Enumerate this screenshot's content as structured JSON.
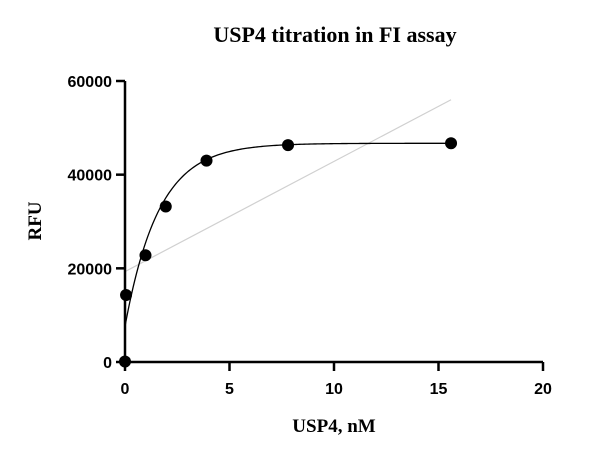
{
  "chart_data": {
    "type": "scatter",
    "title": "USP4 titration in FI assay",
    "xlabel": "USP4, nM",
    "ylabel": "RFU",
    "xlim": [
      0,
      20
    ],
    "ylim": [
      0,
      60000
    ],
    "x_ticks": [
      0,
      5,
      10,
      15,
      20
    ],
    "y_ticks": [
      0,
      20000,
      40000,
      60000
    ],
    "x_tick_labels": [
      "0",
      "5",
      "10",
      "15",
      "20"
    ],
    "y_tick_labels": [
      "0",
      "20000",
      "40000",
      "60000"
    ],
    "grid": false,
    "legend": "none",
    "series": [
      {
        "values_x": [
          0,
          0.05,
          0.98,
          1.95,
          3.9,
          7.8,
          15.6
        ],
        "values_y": [
          100,
          14300,
          22800,
          33200,
          43000,
          46300,
          46700
        ],
        "marker": "circle",
        "color": "#000000"
      }
    ],
    "fit_curve": {
      "type": "exponential-association",
      "y0": 7600,
      "plateau": 46700,
      "k": 0.62,
      "x_range": [
        0,
        15.6
      ],
      "color": "#000000"
    },
    "reference_line": {
      "x": [
        0,
        15.6
      ],
      "y": [
        19300,
        56000
      ],
      "color": "#d0d0d0"
    }
  }
}
